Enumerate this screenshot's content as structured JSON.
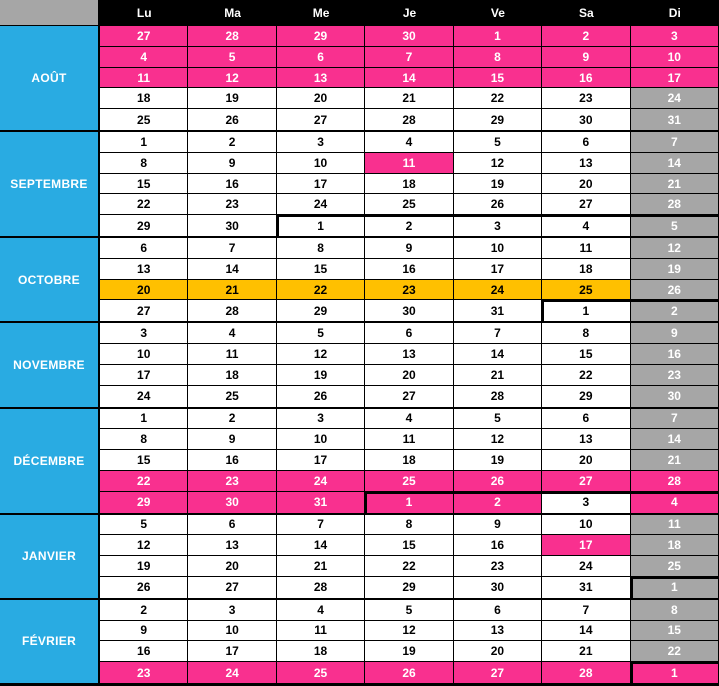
{
  "colors": {
    "pink": "#F9308F",
    "blue": "#29ABE2",
    "gray": "#A6A6A6",
    "orange": "#FFC000",
    "header_bg": "#000000",
    "header_fg": "#FFFFFF"
  },
  "header": {
    "days": [
      "Lu",
      "Ma",
      "Me",
      "Je",
      "Ve",
      "Sa",
      "Di"
    ]
  },
  "months": [
    {
      "label": "AOÛT",
      "weeks": [
        {
          "values": [
            "27",
            "28",
            "29",
            "30",
            "1",
            "2",
            "3"
          ],
          "fills": "ppppppp"
        },
        {
          "values": [
            "4",
            "5",
            "6",
            "7",
            "8",
            "9",
            "10"
          ],
          "fills": "ppppppp"
        },
        {
          "values": [
            "11",
            "12",
            "13",
            "14",
            "15",
            "16",
            "17"
          ],
          "fills": "ppppppp"
        },
        {
          "values": [
            "18",
            "19",
            "20",
            "21",
            "22",
            "23",
            "24"
          ],
          "fills": "wwwwwwg"
        },
        {
          "values": [
            "25",
            "26",
            "27",
            "28",
            "29",
            "30",
            "31"
          ],
          "fills": "wwwwwwg"
        }
      ]
    },
    {
      "label": "SEPTEMBRE",
      "weeks": [
        {
          "values": [
            "1",
            "2",
            "3",
            "4",
            "5",
            "6",
            "7"
          ],
          "fills": "wwwwwwg"
        },
        {
          "values": [
            "8",
            "9",
            "10",
            "11",
            "12",
            "13",
            "14"
          ],
          "fills": "wwwpwwg"
        },
        {
          "values": [
            "15",
            "16",
            "17",
            "18",
            "19",
            "20",
            "21"
          ],
          "fills": "wwwwwwg"
        },
        {
          "values": [
            "22",
            "23",
            "24",
            "25",
            "26",
            "27",
            "28"
          ],
          "fills": "wwwwwwg"
        },
        {
          "values": [
            "29",
            "30",
            "1",
            "2",
            "3",
            "4",
            "5"
          ],
          "fills": "wwwwwwg",
          "thick": [
            "",
            "",
            "lt",
            "t",
            "t",
            "t",
            "t"
          ]
        }
      ]
    },
    {
      "label": "OCTOBRE",
      "weeks": [
        {
          "values": [
            "6",
            "7",
            "8",
            "9",
            "10",
            "11",
            "12"
          ],
          "fills": "wwwwwwg"
        },
        {
          "values": [
            "13",
            "14",
            "15",
            "16",
            "17",
            "18",
            "19"
          ],
          "fills": "wwwwwwg"
        },
        {
          "values": [
            "20",
            "21",
            "22",
            "23",
            "24",
            "25",
            "26"
          ],
          "fills": "oooooog"
        },
        {
          "values": [
            "27",
            "28",
            "29",
            "30",
            "31",
            "1",
            "2"
          ],
          "fills": "wwwwwwg",
          "thick": [
            "",
            "",
            "",
            "",
            "",
            "lt",
            "t"
          ]
        }
      ]
    },
    {
      "label": "NOVEMBRE",
      "weeks": [
        {
          "values": [
            "3",
            "4",
            "5",
            "6",
            "7",
            "8",
            "9"
          ],
          "fills": "wwwwwwg"
        },
        {
          "values": [
            "10",
            "11",
            "12",
            "13",
            "14",
            "15",
            "16"
          ],
          "fills": "wwwwwwg"
        },
        {
          "values": [
            "17",
            "18",
            "19",
            "20",
            "21",
            "22",
            "23"
          ],
          "fills": "wwwwwwg"
        },
        {
          "values": [
            "24",
            "25",
            "26",
            "27",
            "28",
            "29",
            "30"
          ],
          "fills": "wwwwwwg"
        }
      ]
    },
    {
      "label": "DÉCEMBRE",
      "weeks": [
        {
          "values": [
            "1",
            "2",
            "3",
            "4",
            "5",
            "6",
            "7"
          ],
          "fills": "wwwwwwg"
        },
        {
          "values": [
            "8",
            "9",
            "10",
            "11",
            "12",
            "13",
            "14"
          ],
          "fills": "wwwwwwg"
        },
        {
          "values": [
            "15",
            "16",
            "17",
            "18",
            "19",
            "20",
            "21"
          ],
          "fills": "wwwwwwg"
        },
        {
          "values": [
            "22",
            "23",
            "24",
            "25",
            "26",
            "27",
            "28"
          ],
          "fills": "ppppppp"
        },
        {
          "values": [
            "29",
            "30",
            "31",
            "1",
            "2",
            "3",
            "4"
          ],
          "fills": "pppppwp",
          "thick": [
            "",
            "",
            "",
            "lt",
            "t",
            "t",
            "t"
          ]
        }
      ]
    },
    {
      "label": "JANVIER",
      "weeks": [
        {
          "values": [
            "5",
            "6",
            "7",
            "8",
            "9",
            "10",
            "11"
          ],
          "fills": "wwwwwwg"
        },
        {
          "values": [
            "12",
            "13",
            "14",
            "15",
            "16",
            "17",
            "18"
          ],
          "fills": "wwwwwpg"
        },
        {
          "values": [
            "19",
            "20",
            "21",
            "22",
            "23",
            "24",
            "25"
          ],
          "fills": "wwwwwwg"
        },
        {
          "values": [
            "26",
            "27",
            "28",
            "29",
            "30",
            "31",
            "1"
          ],
          "fills": "wwwwwwg",
          "thick": [
            "",
            "",
            "",
            "",
            "",
            "",
            "lt"
          ]
        }
      ]
    },
    {
      "label": "FÉVRIER",
      "weeks": [
        {
          "values": [
            "2",
            "3",
            "4",
            "5",
            "6",
            "7",
            "8"
          ],
          "fills": "wwwwwwg"
        },
        {
          "values": [
            "9",
            "10",
            "11",
            "12",
            "13",
            "14",
            "15"
          ],
          "fills": "wwwwwwg"
        },
        {
          "values": [
            "16",
            "17",
            "18",
            "19",
            "20",
            "21",
            "22"
          ],
          "fills": "wwwwwwg"
        },
        {
          "values": [
            "23",
            "24",
            "25",
            "26",
            "27",
            "28",
            "1"
          ],
          "fills": "ppppppp",
          "thick": [
            "",
            "",
            "",
            "",
            "",
            "",
            "lt"
          ]
        }
      ]
    }
  ]
}
